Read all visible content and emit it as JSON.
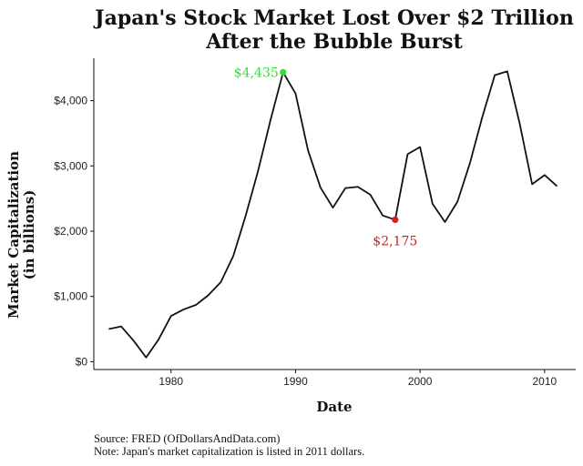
{
  "chart_data": {
    "type": "line",
    "title_line1": "Japan's Stock Market Lost Over $2 Trillion",
    "title_line2": "After the Bubble Burst",
    "xlabel": "Date",
    "ylabel_line1": "Market Capitalization",
    "ylabel_line2": "(in billions)",
    "xlim": [
      1973.8,
      2012.5
    ],
    "ylim": [
      -120,
      4650
    ],
    "x_ticks": [
      1980,
      1990,
      2000,
      2010
    ],
    "y_ticks": [
      {
        "value": 0,
        "label": "$0"
      },
      {
        "value": 1000,
        "label": "$1,000"
      },
      {
        "value": 2000,
        "label": "$2,000"
      },
      {
        "value": 3000,
        "label": "$3,000"
      },
      {
        "value": 4000,
        "label": "$4,000"
      }
    ],
    "grid": false,
    "series": [
      {
        "color": "#111111",
        "x": [
          1975,
          1976,
          1977,
          1978,
          1979,
          1980,
          1981,
          1982,
          1983,
          1984,
          1985,
          1986,
          1987,
          1988,
          1989,
          1990,
          1991,
          1992,
          1993,
          1994,
          1995,
          1996,
          1997,
          1998,
          1999,
          2000,
          2001,
          2002,
          2003,
          2004,
          2005,
          2006,
          2007,
          2008,
          2009,
          2010,
          2011
        ],
        "y": [
          500,
          540,
          320,
          65,
          340,
          700,
          800,
          870,
          1020,
          1220,
          1620,
          2240,
          2930,
          3710,
          4435,
          4110,
          3240,
          2670,
          2360,
          2660,
          2680,
          2560,
          2240,
          2175,
          3180,
          3290,
          2420,
          2140,
          2450,
          3040,
          3750,
          4390,
          4450,
          3650,
          2720,
          2860,
          2690
        ]
      }
    ],
    "annotations": [
      {
        "x": 1989,
        "y": 4435,
        "label": "$4,435",
        "color": "#33dd33",
        "position": "left"
      },
      {
        "x": 1998,
        "y": 2175,
        "label": "$2,175",
        "color": "#cc2222",
        "position": "below"
      }
    ]
  },
  "footer": {
    "source": "Source:  FRED (OfDollarsAndData.com)",
    "note": "Note: Japan's market capitalization is listed in 2011 dollars."
  }
}
